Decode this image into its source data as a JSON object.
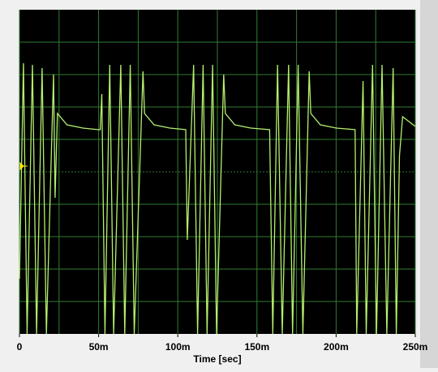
{
  "chart_data": {
    "type": "line",
    "x_label": "Time [sec]",
    "xlim": [
      0,
      0.25
    ],
    "ylim": [
      -5,
      5
    ],
    "xticks": [
      0,
      {
        "value": 0.05,
        "label": "50m"
      },
      {
        "value": 0.1,
        "label": "100m"
      },
      {
        "value": 0.15,
        "label": "150m"
      },
      {
        "value": 0.2,
        "label": "200m"
      },
      {
        "value": 0.25,
        "label": "250m"
      }
    ],
    "xgrid": [
      0.025,
      0.075,
      0.125,
      0.175,
      0.225
    ],
    "ygrid": [
      -4,
      -3,
      -2,
      -1,
      0,
      1,
      2,
      3,
      4
    ],
    "grid_color": "#2f7d32",
    "series": [
      {
        "color": "#b5f06e",
        "x": [
          0,
          0.0025,
          0.0048,
          0.0082,
          0.0108,
          0.0143,
          0.017,
          0.0215,
          0.0225,
          0.024,
          0.03,
          0.04,
          0.05,
          0.051,
          0.052,
          0.054,
          0.057,
          0.0595,
          0.064,
          0.0665,
          0.07,
          0.0725,
          0.078,
          0.079,
          0.085,
          0.095,
          0.105,
          0.106,
          0.11,
          0.1125,
          0.116,
          0.1185,
          0.122,
          0.1245,
          0.129,
          0.13,
          0.136,
          0.146,
          0.158,
          0.16,
          0.163,
          0.166,
          0.17,
          0.1725,
          0.176,
          0.179,
          0.183,
          0.184,
          0.19,
          0.2,
          0.212,
          0.213,
          0.217,
          0.219,
          0.223,
          0.2255,
          0.229,
          0.232,
          0.236,
          0.238,
          0.24,
          0.242,
          0.25
        ],
        "values": [
          -3.3,
          3.35,
          -5,
          3.3,
          -5,
          3.2,
          -5,
          3.0,
          -0.8,
          1.8,
          1.45,
          1.35,
          1.3,
          1.3,
          2.4,
          -5,
          3.3,
          -5,
          3.3,
          -5,
          3.3,
          -5,
          3.1,
          1.8,
          1.45,
          1.35,
          1.3,
          -2.1,
          3.3,
          -5,
          3.3,
          -5,
          3.3,
          -5,
          3.0,
          1.8,
          1.45,
          1.35,
          1.3,
          -5,
          3.3,
          -5,
          3.3,
          -5,
          3.3,
          -5,
          3.1,
          1.8,
          1.45,
          1.35,
          1.3,
          -5,
          2.8,
          -5,
          3.3,
          -5,
          3.3,
          -5,
          3.2,
          -5,
          0.5,
          1.7,
          1.4
        ]
      }
    ]
  }
}
